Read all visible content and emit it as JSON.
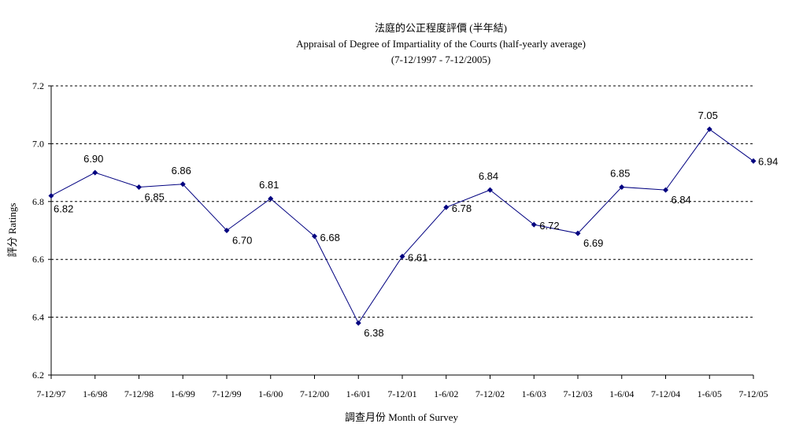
{
  "chart_data": {
    "type": "line",
    "title_zh": "法庭的公正程度評價 (半年結)",
    "title": "Appraisal of Degree of Impartiality of the Courts (half-yearly average)",
    "subtitle": "(7-12/1997 - 7-12/2005)",
    "xlabel": "調查月份 Month of Survey",
    "ylabel": "評分 Ratings",
    "ylim": [
      6.2,
      7.2
    ],
    "yticks": [
      "6.2",
      "6.4",
      "6.6",
      "6.8",
      "7.0",
      "7.2"
    ],
    "grid": "horizontal dashed",
    "categories": [
      "7-12/97",
      "1-6/98",
      "7-12/98",
      "1-6/99",
      "7-12/99",
      "1-6/00",
      "7-12/00",
      "1-6/01",
      "7-12/01",
      "1-6/02",
      "7-12/02",
      "1-6/03",
      "7-12/03",
      "1-6/04",
      "7-12/04",
      "1-6/05",
      "7-12/05"
    ],
    "values": [
      6.82,
      6.9,
      6.85,
      6.86,
      6.7,
      6.81,
      6.68,
      6.38,
      6.61,
      6.78,
      6.84,
      6.72,
      6.69,
      6.85,
      6.84,
      7.05,
      6.94
    ],
    "data_labels": [
      "6.82",
      "6.90",
      "6.85",
      "6.86",
      "6.70",
      "6.81",
      "6.68",
      "6.38",
      "6.61",
      "6.78",
      "6.84",
      "6.72",
      "6.69",
      "6.85",
      "6.84",
      "7.05",
      "6.94"
    ],
    "line_color": "#000080"
  }
}
